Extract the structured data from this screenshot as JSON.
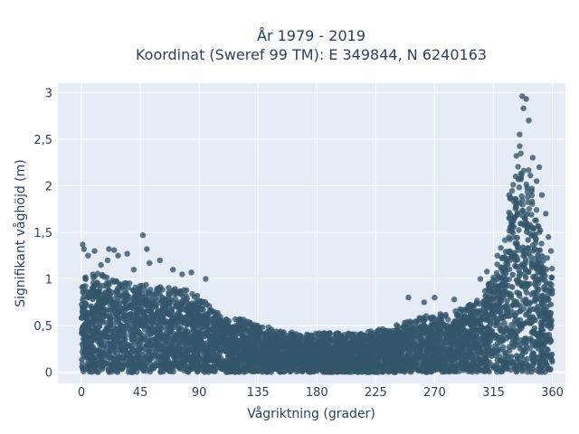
{
  "chart_data": {
    "type": "scatter",
    "title_line1": "År 1979 - 2019",
    "title_line2": "Koordinat (Sweref 99 TM): E 349844, N 6240163",
    "xlabel": "Vågriktning (grader)",
    "ylabel": "Signifikant våghöjd (m)",
    "xlim": [
      -18,
      370
    ],
    "ylim": [
      -0.12,
      3.1
    ],
    "xticks": [
      0,
      45,
      90,
      135,
      180,
      225,
      270,
      315,
      360
    ],
    "xtick_labels": [
      "0",
      "45",
      "90",
      "135",
      "180",
      "225",
      "270",
      "315",
      "360"
    ],
    "yticks": [
      0,
      0.5,
      1,
      1.5,
      2,
      2.5,
      3
    ],
    "ytick_labels": [
      "0",
      "0,5",
      "1",
      "1,5",
      "2",
      "2,5",
      "3"
    ],
    "grid": true,
    "marker_color": "#34566b",
    "upper_envelope": {
      "x": [
        0,
        15,
        30,
        45,
        60,
        75,
        85,
        90,
        100,
        110,
        120,
        135,
        150,
        165,
        180,
        195,
        210,
        225,
        240,
        255,
        270,
        285,
        300,
        310,
        320,
        325,
        330,
        335,
        340,
        345,
        350,
        355,
        360
      ],
      "y": [
        1.1,
        1.05,
        1.0,
        0.95,
        0.92,
        0.9,
        0.88,
        0.82,
        0.68,
        0.6,
        0.58,
        0.52,
        0.45,
        0.42,
        0.42,
        0.42,
        0.42,
        0.45,
        0.5,
        0.58,
        0.62,
        0.65,
        0.75,
        0.9,
        1.3,
        1.6,
        2.1,
        2.6,
        2.4,
        2.0,
        1.6,
        1.3,
        1.2
      ]
    },
    "outliers": [
      {
        "x": 1,
        "y": 1.37
      },
      {
        "x": 2,
        "y": 1.32
      },
      {
        "x": 5,
        "y": 1.25
      },
      {
        "x": 10,
        "y": 1.3
      },
      {
        "x": 15,
        "y": 1.15
      },
      {
        "x": 20,
        "y": 1.2
      },
      {
        "x": 21,
        "y": 1.32
      },
      {
        "x": 25,
        "y": 1.31
      },
      {
        "x": 28,
        "y": 1.25
      },
      {
        "x": 35,
        "y": 1.27
      },
      {
        "x": 40,
        "y": 1.1
      },
      {
        "x": 47,
        "y": 1.47
      },
      {
        "x": 50,
        "y": 1.32
      },
      {
        "x": 52,
        "y": 1.17
      },
      {
        "x": 60,
        "y": 1.2
      },
      {
        "x": 70,
        "y": 1.1
      },
      {
        "x": 77,
        "y": 1.05
      },
      {
        "x": 84,
        "y": 1.07
      },
      {
        "x": 95,
        "y": 1.0
      },
      {
        "x": 250,
        "y": 0.8
      },
      {
        "x": 262,
        "y": 0.75
      },
      {
        "x": 270,
        "y": 0.8
      },
      {
        "x": 285,
        "y": 0.78
      },
      {
        "x": 305,
        "y": 1.0
      },
      {
        "x": 310,
        "y": 1.08
      },
      {
        "x": 318,
        "y": 1.25
      },
      {
        "x": 327,
        "y": 1.9
      },
      {
        "x": 332,
        "y": 2.1
      },
      {
        "x": 335,
        "y": 2.55
      },
      {
        "x": 337,
        "y": 2.96
      },
      {
        "x": 338,
        "y": 2.83
      },
      {
        "x": 340,
        "y": 2.93
      },
      {
        "x": 342,
        "y": 2.7
      },
      {
        "x": 345,
        "y": 2.3
      },
      {
        "x": 348,
        "y": 2.05
      },
      {
        "x": 350,
        "y": 2.2
      },
      {
        "x": 352,
        "y": 1.9
      },
      {
        "x": 355,
        "y": 1.7
      },
      {
        "x": 357,
        "y": 1.45
      },
      {
        "x": 359,
        "y": 1.3
      }
    ]
  }
}
